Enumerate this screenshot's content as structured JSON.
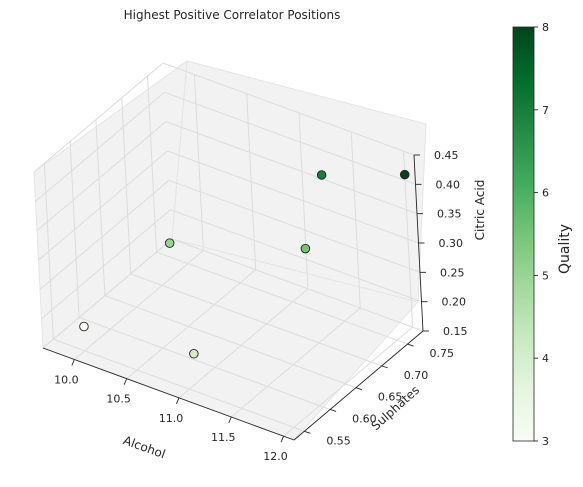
{
  "chart_data": {
    "type": "scatter",
    "title": "Highest Positive Correlator Positions",
    "xlabel": "Alcohol",
    "ylabel": "Sulphates",
    "zlabel": "Citric Acid",
    "colorbar_label": "Quality",
    "colormap": "Greens",
    "xlim": [
      9.7,
      12.1
    ],
    "ylim": [
      0.53,
      0.78
    ],
    "zlim": [
      0.15,
      0.45
    ],
    "clim": [
      3,
      8
    ],
    "x_ticks": [
      10.0,
      10.5,
      11.0,
      11.5,
      12.0
    ],
    "x_tick_labels": [
      "10.0",
      "10.5",
      "11.0",
      "11.5",
      "12.0"
    ],
    "y_ticks": [
      0.55,
      0.6,
      0.65,
      0.7,
      0.75
    ],
    "y_tick_labels": [
      "0.55",
      "0.60",
      "0.65",
      "0.70",
      "0.75"
    ],
    "z_ticks": [
      0.15,
      0.2,
      0.25,
      0.3,
      0.35,
      0.4,
      0.45
    ],
    "z_tick_labels": [
      "0.15",
      "0.20",
      "0.25",
      "0.30",
      "0.35",
      "0.40",
      "0.45"
    ],
    "colorbar_ticks": [
      3,
      4,
      5,
      6,
      7,
      8
    ],
    "colorbar_tick_labels": [
      "3",
      "4",
      "5",
      "6",
      "7",
      "8"
    ],
    "points": [
      {
        "alcohol": 9.9,
        "sulphates": 0.57,
        "citric_acid": 0.17,
        "quality": 3
      },
      {
        "alcohol": 10.2,
        "sulphates": 0.68,
        "citric_acid": 0.25,
        "quality": 5
      },
      {
        "alcohol": 10.8,
        "sulphates": 0.6,
        "citric_acid": 0.16,
        "quality": 4
      },
      {
        "alcohol": 11.1,
        "sulphates": 0.76,
        "citric_acid": 0.24,
        "quality": 5.5
      },
      {
        "alcohol": 11.4,
        "sulphates": 0.74,
        "citric_acid": 0.4,
        "quality": 7
      },
      {
        "alcohol": 12.0,
        "sulphates": 0.78,
        "citric_acid": 0.41,
        "quality": 8
      }
    ],
    "grid": true
  }
}
